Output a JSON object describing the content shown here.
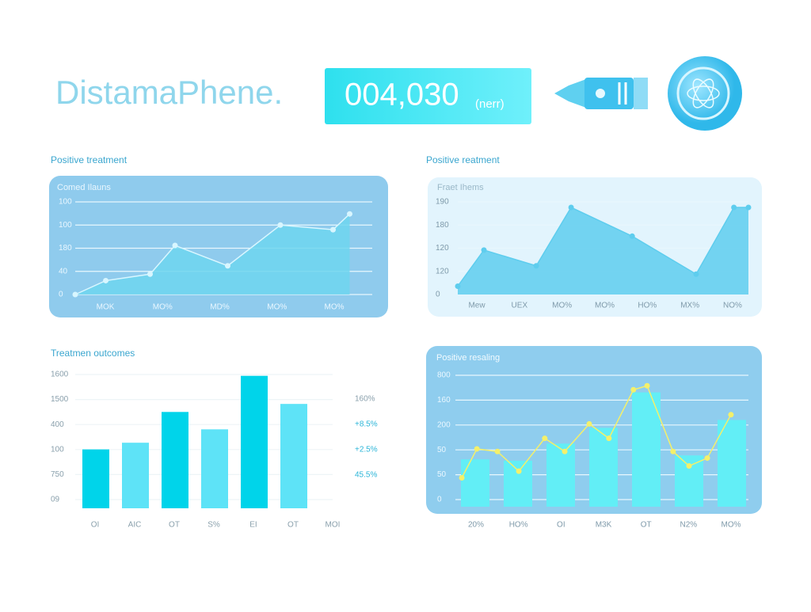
{
  "header": {
    "title": "DistamaPhene.",
    "counter": "004,030",
    "counter_unit": "(nerr)"
  },
  "panels": [
    {
      "kind": "area",
      "title": "Positive treatment",
      "subtitle": "Comed Ilauns",
      "y_labels": [
        "100",
        "100",
        "180",
        "40",
        "0"
      ],
      "x_labels": [
        "MOK",
        "MO%",
        "MD%",
        "MO%",
        "MO%"
      ],
      "xlim": [
        0,
        100
      ],
      "ylim": [
        0,
        100
      ],
      "x": [
        0,
        11,
        27,
        36,
        55,
        74,
        93,
        99
      ],
      "values": [
        0,
        15,
        22,
        53,
        31,
        75,
        70,
        87
      ],
      "color": "#6fd6ee",
      "line_color": "#d8f6ff"
    },
    {
      "kind": "area",
      "title": "Positive reatment",
      "subtitle": "Fraet Ihems",
      "y_labels": [
        "190",
        "180",
        "120",
        "120",
        "0"
      ],
      "x_labels": [
        "Mew",
        "UEX",
        "MO%",
        "MO%",
        "HO%",
        "MX%",
        "NO%"
      ],
      "xlim": [
        0,
        100
      ],
      "ylim": [
        0,
        100
      ],
      "x": [
        0,
        9,
        27,
        39,
        60,
        82,
        95,
        100
      ],
      "values": [
        9,
        48,
        31,
        94,
        63,
        22,
        94,
        94
      ],
      "color": "#5ecdee",
      "line_color": "#5ecdee"
    },
    {
      "kind": "bars",
      "title": "Treatmen outcomes",
      "y_labels": [
        "1600",
        "1500",
        "400",
        "100",
        "750",
        "09"
      ],
      "y2_labels": [
        "160%",
        "+8.5%",
        "+2.5%",
        "45.5%"
      ],
      "x_labels": [
        "OI",
        "AIC",
        "OT",
        "S%",
        "EI",
        "OT",
        "MOI"
      ],
      "ylim": [
        0,
        100
      ],
      "values": [
        44,
        49,
        72,
        59,
        99,
        78,
        null
      ],
      "colors": [
        "#00d4ea",
        "#5ee3f7"
      ]
    },
    {
      "kind": "bars-line",
      "subtitle": "Positive resaling",
      "y_labels": [
        "800",
        "160",
        "200",
        "50",
        "50",
        "0"
      ],
      "x_labels": [
        "20%",
        "HO%",
        "OI",
        "M3K",
        "OT",
        "N2%",
        "MO%"
      ],
      "ylim": [
        0,
        100
      ],
      "xlim": [
        0,
        100
      ],
      "values": [
        36,
        35,
        48,
        60,
        87,
        39,
        66
      ],
      "line_x": [
        0.3,
        5.6,
        12.8,
        20.3,
        29.4,
        36.4,
        45,
        51.9,
        60.5,
        65.3,
        74.4,
        80,
        86.4,
        94.7
      ],
      "line_values": [
        22,
        44,
        42,
        27,
        52,
        42,
        63,
        52,
        89,
        92,
        42,
        31,
        37,
        70
      ],
      "colors": [
        "#62eef6"
      ],
      "line_color": "#f4f06a"
    }
  ]
}
